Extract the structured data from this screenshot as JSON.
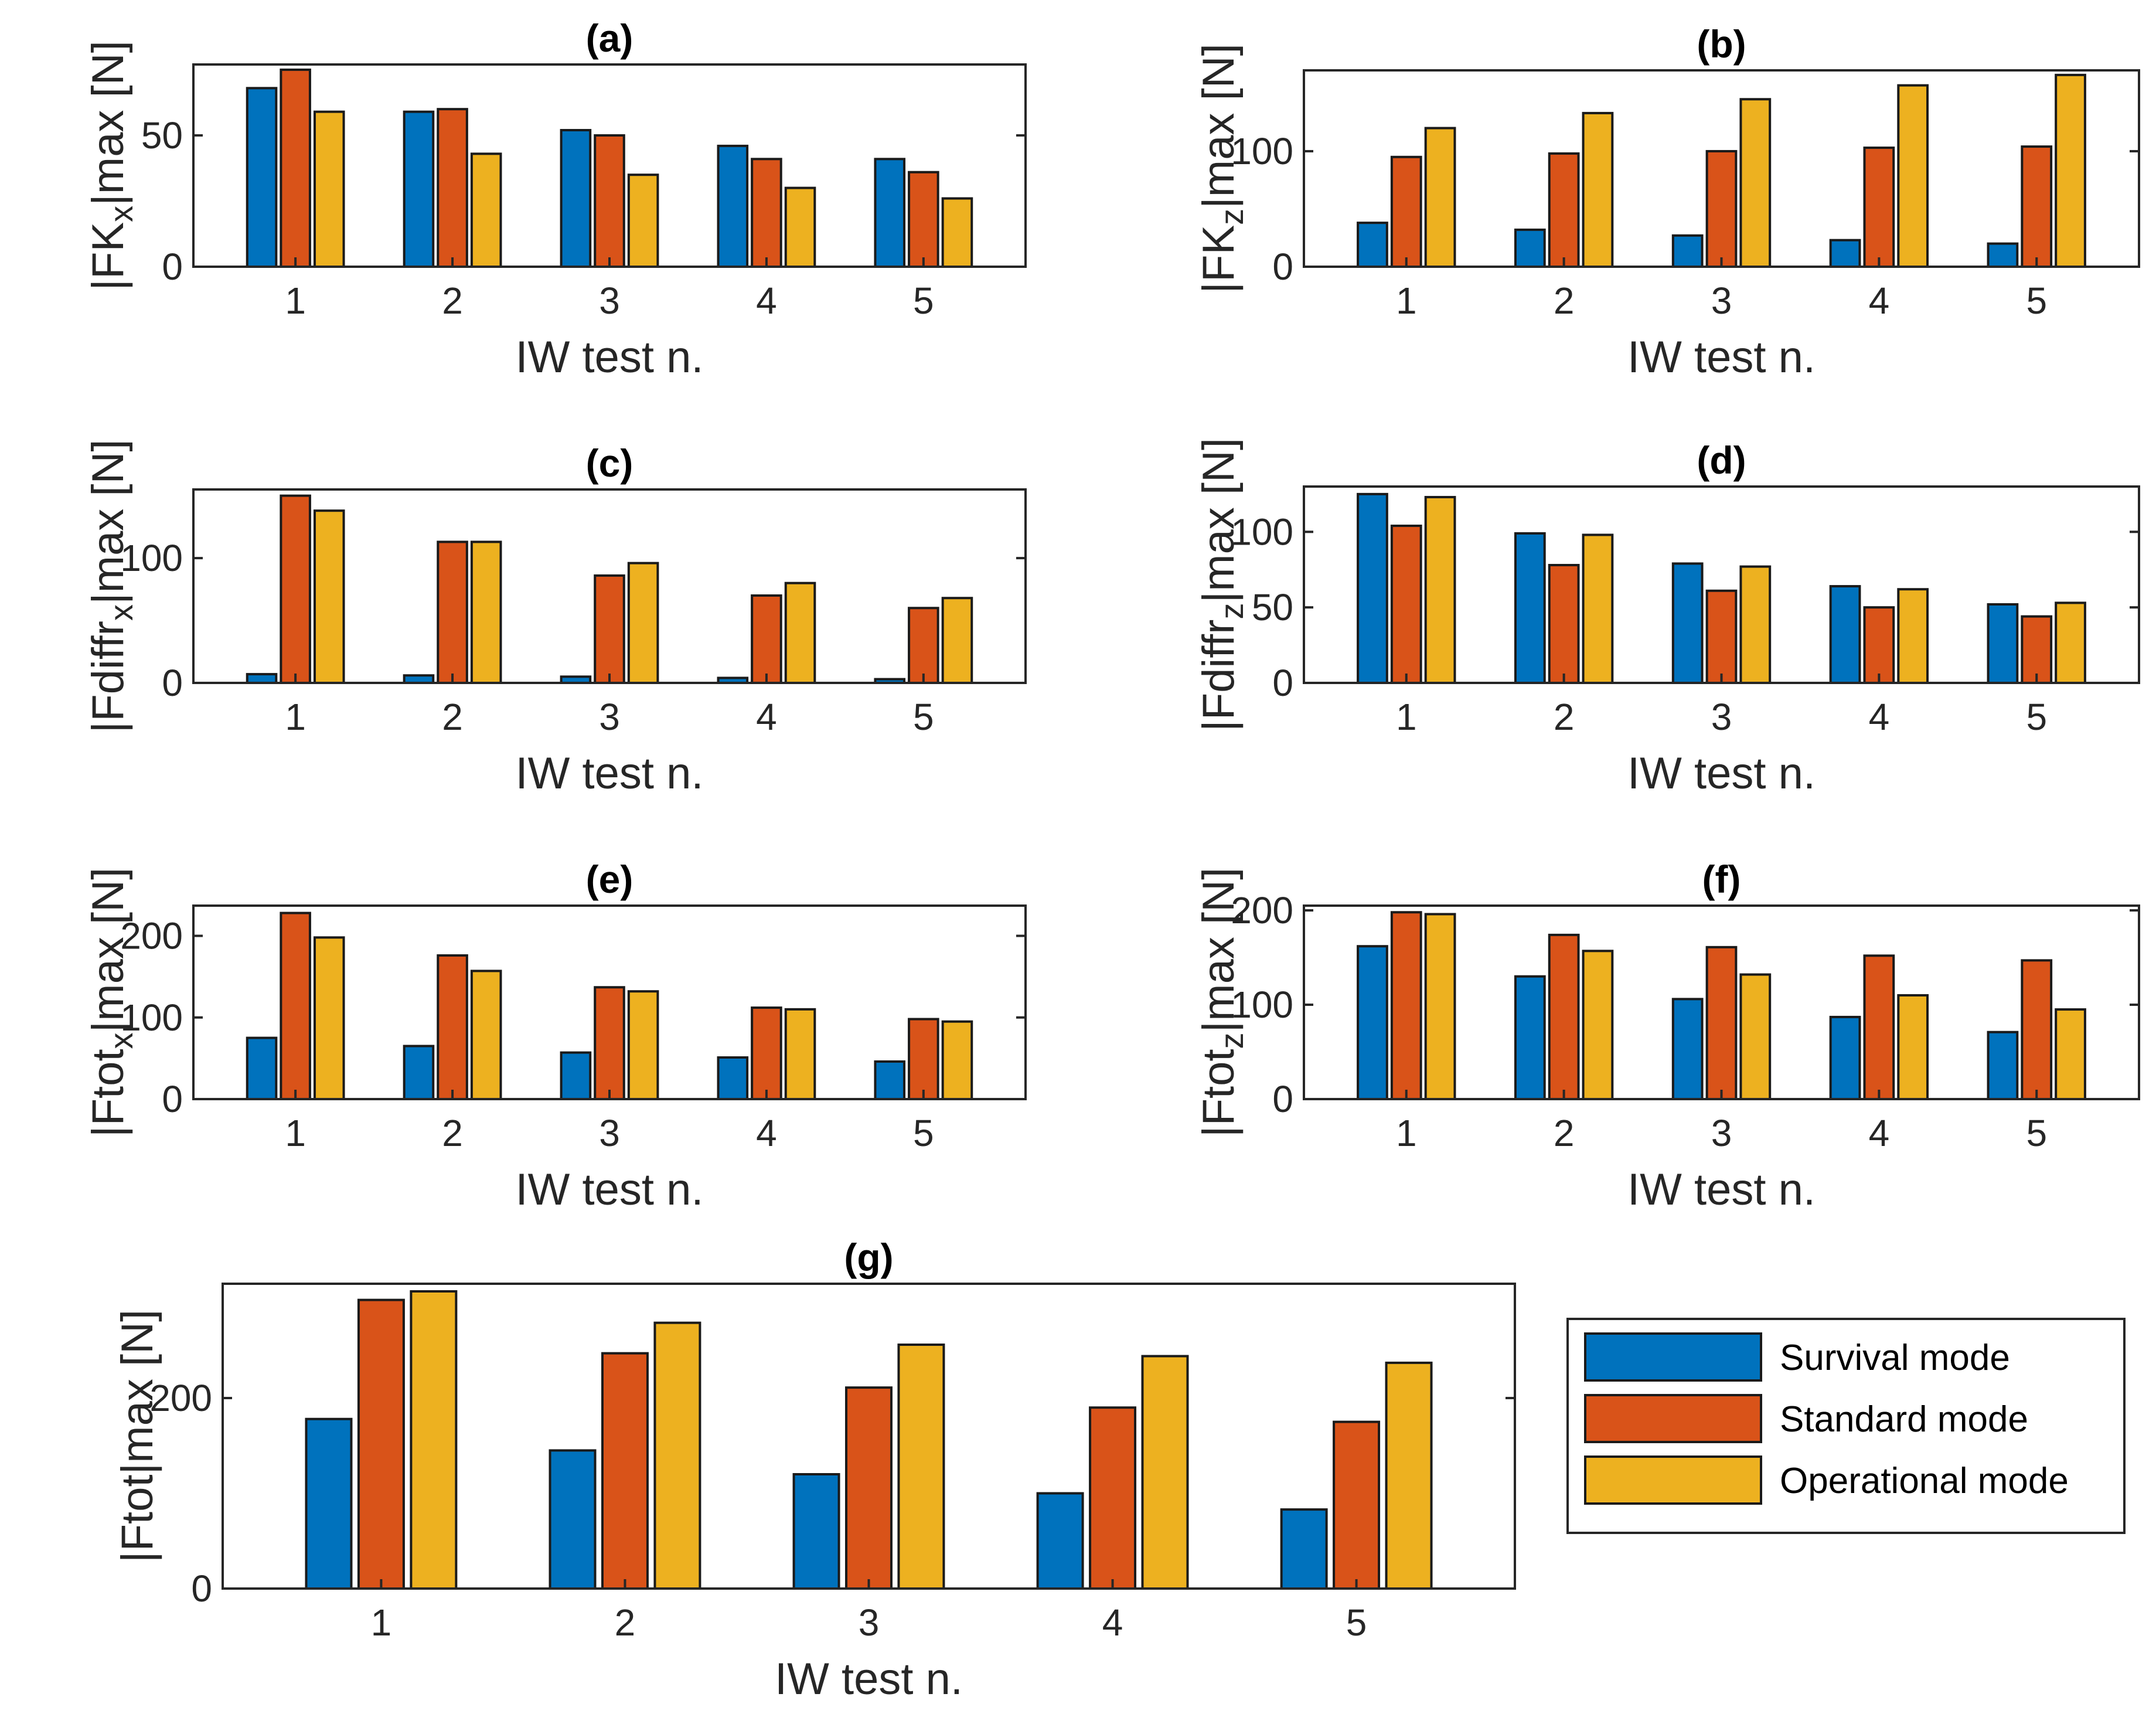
{
  "chart_data": [
    {
      "id": "a",
      "type": "bar",
      "title": "(a)",
      "xlabel": "IW test n.",
      "ylabel": {
        "pre": "|FK",
        "sub": "x",
        "post": "|max [N]"
      },
      "categories": [
        "1",
        "2",
        "3",
        "4",
        "5"
      ],
      "ylim": [
        0,
        77
      ],
      "yticks": [
        0,
        50
      ],
      "series": [
        {
          "name": "Survival mode",
          "values": [
            68,
            59,
            52,
            46,
            41
          ]
        },
        {
          "name": "Standard mode",
          "values": [
            75,
            60,
            50,
            41,
            36
          ]
        },
        {
          "name": "Operational mode",
          "values": [
            59,
            43,
            35,
            30,
            26
          ]
        }
      ]
    },
    {
      "id": "b",
      "type": "bar",
      "title": "(b)",
      "xlabel": "IW test n.",
      "ylabel": {
        "pre": "|FK",
        "sub": "z",
        "post": "|max [N]"
      },
      "categories": [
        "1",
        "2",
        "3",
        "4",
        "5"
      ],
      "ylim": [
        0,
        170
      ],
      "yticks": [
        0,
        100
      ],
      "series": [
        {
          "name": "Survival mode",
          "values": [
            38,
            32,
            27,
            23,
            20
          ]
        },
        {
          "name": "Standard mode",
          "values": [
            95,
            98,
            100,
            103,
            104
          ]
        },
        {
          "name": "Operational mode",
          "values": [
            120,
            133,
            145,
            157,
            166
          ]
        }
      ]
    },
    {
      "id": "c",
      "type": "bar",
      "title": "(c)",
      "xlabel": "IW test n.",
      "ylabel": {
        "pre": "|Fdiffr",
        "sub": "x",
        "post": "|max [N]"
      },
      "categories": [
        "1",
        "2",
        "3",
        "4",
        "5"
      ],
      "ylim": [
        0,
        155
      ],
      "yticks": [
        0,
        100
      ],
      "series": [
        {
          "name": "Survival mode",
          "values": [
            7,
            6,
            5,
            4,
            3
          ]
        },
        {
          "name": "Standard mode",
          "values": [
            150,
            113,
            86,
            70,
            60
          ]
        },
        {
          "name": "Operational mode",
          "values": [
            138,
            113,
            96,
            80,
            68
          ]
        }
      ]
    },
    {
      "id": "d",
      "type": "bar",
      "title": "(d)",
      "xlabel": "IW test n.",
      "ylabel": {
        "pre": "|Fdiffr",
        "sub": "z",
        "post": "|max [N]"
      },
      "categories": [
        "1",
        "2",
        "3",
        "4",
        "5"
      ],
      "ylim": [
        0,
        130
      ],
      "yticks": [
        0,
        50,
        100
      ],
      "series": [
        {
          "name": "Survival mode",
          "values": [
            125,
            99,
            79,
            64,
            52
          ]
        },
        {
          "name": "Standard mode",
          "values": [
            104,
            78,
            61,
            50,
            44
          ]
        },
        {
          "name": "Operational mode",
          "values": [
            123,
            98,
            77,
            62,
            53
          ]
        }
      ]
    },
    {
      "id": "e",
      "type": "bar",
      "title": "(e)",
      "xlabel": "IW test n.",
      "ylabel": {
        "pre": "|Ftot",
        "sub": "x",
        "post": "|max [N]"
      },
      "categories": [
        "1",
        "2",
        "3",
        "4",
        "5"
      ],
      "ylim": [
        0,
        237
      ],
      "yticks": [
        0,
        100,
        200
      ],
      "series": [
        {
          "name": "Survival mode",
          "values": [
            75,
            65,
            57,
            51,
            46
          ]
        },
        {
          "name": "Standard mode",
          "values": [
            228,
            176,
            137,
            112,
            98
          ]
        },
        {
          "name": "Operational mode",
          "values": [
            198,
            157,
            132,
            110,
            95
          ]
        }
      ]
    },
    {
      "id": "f",
      "type": "bar",
      "title": "(f)",
      "xlabel": "IW test n.",
      "ylabel": {
        "pre": "|Ftot",
        "sub": "z",
        "post": "|max [N]"
      },
      "categories": [
        "1",
        "2",
        "3",
        "4",
        "5"
      ],
      "ylim": [
        0,
        205
      ],
      "yticks": [
        0,
        100,
        200
      ],
      "series": [
        {
          "name": "Survival mode",
          "values": [
            162,
            130,
            106,
            87,
            71
          ]
        },
        {
          "name": "Standard mode",
          "values": [
            198,
            174,
            161,
            152,
            147
          ]
        },
        {
          "name": "Operational mode",
          "values": [
            196,
            157,
            132,
            110,
            95
          ]
        }
      ]
    },
    {
      "id": "g",
      "type": "bar",
      "title": "(g)",
      "xlabel": "IW test n.",
      "ylabel": {
        "pre": "|Ftot|max [N]",
        "sub": "",
        "post": ""
      },
      "categories": [
        "1",
        "2",
        "3",
        "4",
        "5"
      ],
      "ylim": [
        0,
        320
      ],
      "yticks": [
        0,
        200
      ],
      "series": [
        {
          "name": "Survival mode",
          "values": [
            178,
            145,
            120,
            100,
            83
          ]
        },
        {
          "name": "Standard mode",
          "values": [
            303,
            247,
            211,
            190,
            175
          ]
        },
        {
          "name": "Operational mode",
          "values": [
            312,
            279,
            256,
            244,
            237
          ]
        }
      ]
    }
  ],
  "legend": {
    "items": [
      {
        "label": "Survival mode",
        "color": "#0072BD"
      },
      {
        "label": "Standard mode",
        "color": "#D95319"
      },
      {
        "label": "Operational mode",
        "color": "#EDB120"
      }
    ],
    "location": "bottom-right"
  },
  "colors": [
    "#0072BD",
    "#D95319",
    "#EDB120"
  ]
}
